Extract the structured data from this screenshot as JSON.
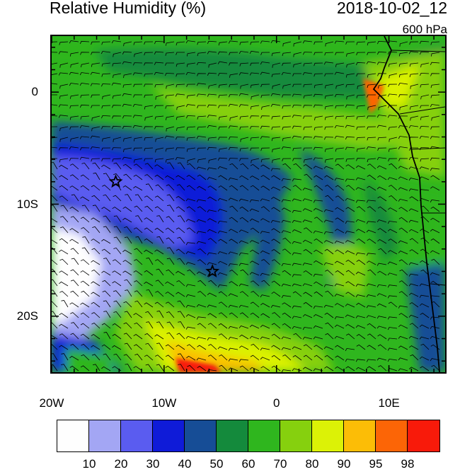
{
  "title": "Relative Humidity (%)",
  "datetime": "2018-10-02_12",
  "level": "600 hPa",
  "lat_labels": [
    {
      "text": "0",
      "lat": 0
    },
    {
      "text": "10S",
      "lat": -10
    },
    {
      "text": "20S",
      "lat": -20
    }
  ],
  "lon_labels": [
    {
      "text": "20W",
      "lon": -20
    },
    {
      "text": "10W",
      "lon": -10
    },
    {
      "text": "0",
      "lon": 0
    },
    {
      "text": "10E",
      "lon": 10
    }
  ],
  "extent": {
    "lon": [
      -20,
      15
    ],
    "lat": [
      -25,
      5
    ]
  },
  "colorbar": {
    "colors": [
      "#fefefe",
      "#a3a6f4",
      "#5a5cf0",
      "#0f1bd8",
      "#164d96",
      "#148a3c",
      "#2fb61e",
      "#86d00e",
      "#dcf206",
      "#fcbd06",
      "#fc6506",
      "#f81a0a"
    ],
    "labels": [
      "10",
      "20",
      "30",
      "40",
      "50",
      "60",
      "70",
      "80",
      "90",
      "95",
      "98"
    ]
  },
  "markers": [
    {
      "name": "star-marker-1",
      "lon": -14.3,
      "lat": -8.0
    },
    {
      "name": "star-marker-2",
      "lon": -5.7,
      "lat": -16.0
    }
  ]
}
